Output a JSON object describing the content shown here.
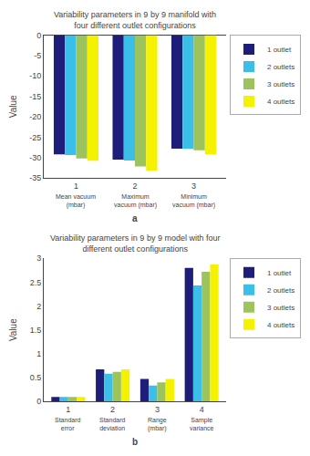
{
  "chart_data": [
    {
      "type": "bar",
      "title": "Variability parameters in 9 by 9 manifold with four different outlet configurations",
      "xlabel": "a",
      "ylabel": "Value",
      "x": [
        1,
        2,
        3
      ],
      "xlim": [
        0.45,
        3.55
      ],
      "xticks": [
        1,
        2,
        3
      ],
      "annotations": [
        {
          "text": "Mean vacuum (mbar)",
          "x": 1
        },
        {
          "text": "Maximum vacuum (mbar)",
          "x": 2
        },
        {
          "text": "Minimum vacuum (mbar)",
          "x": 3
        }
      ],
      "series": [
        {
          "name": "1 outlet",
          "color": "#1e1e7a",
          "values": [
            -29.2,
            -30.5,
            -27.8
          ]
        },
        {
          "name": "2 outlets",
          "color": "#3bbfe8",
          "values": [
            -29.4,
            -30.7,
            -27.9
          ]
        },
        {
          "name": "3 outlets",
          "color": "#9dc45c",
          "values": [
            -30.2,
            -32.2,
            -28.2
          ]
        },
        {
          "name": "4 outlets",
          "color": "#f5f200",
          "values": [
            -30.8,
            -33.2,
            -29.2
          ]
        }
      ],
      "ylim": [
        -35,
        0
      ],
      "yticks": [
        0,
        -5,
        -10,
        -15,
        -20,
        -25,
        -30,
        -35
      ],
      "grid": false,
      "legend": "upper right"
    },
    {
      "type": "bar",
      "title": "Variability parameters in 9 by 9 model with four different outlet configurations",
      "xlabel": "b",
      "ylabel": "Value",
      "x": [
        1,
        2,
        3,
        4
      ],
      "xlim": [
        0.45,
        4.55
      ],
      "xticks": [
        1,
        2,
        3,
        4
      ],
      "annotations": [
        {
          "text": "Standard error",
          "x": 1
        },
        {
          "text": "Standard deviation",
          "x": 2
        },
        {
          "text": "Range (mbar)",
          "x": 3
        },
        {
          "text": "Sample variance",
          "x": 4
        }
      ],
      "series": [
        {
          "name": "1 outlet",
          "color": "#1e1e7a",
          "values": [
            0.09,
            0.67,
            0.47,
            2.8
          ]
        },
        {
          "name": "2 outlets",
          "color": "#3bbfe8",
          "values": [
            0.09,
            0.58,
            0.33,
            2.43
          ]
        },
        {
          "name": "3 outlets",
          "color": "#9dc45c",
          "values": [
            0.09,
            0.62,
            0.4,
            2.72
          ]
        },
        {
          "name": "4 outlets",
          "color": "#f5f200",
          "values": [
            0.09,
            0.67,
            0.47,
            2.87
          ]
        }
      ],
      "ylim": [
        0,
        3
      ],
      "yticks": [
        0,
        0.5,
        1.0,
        1.5,
        2.0,
        2.5,
        3.0
      ],
      "grid": false,
      "legend": "upper right"
    }
  ]
}
